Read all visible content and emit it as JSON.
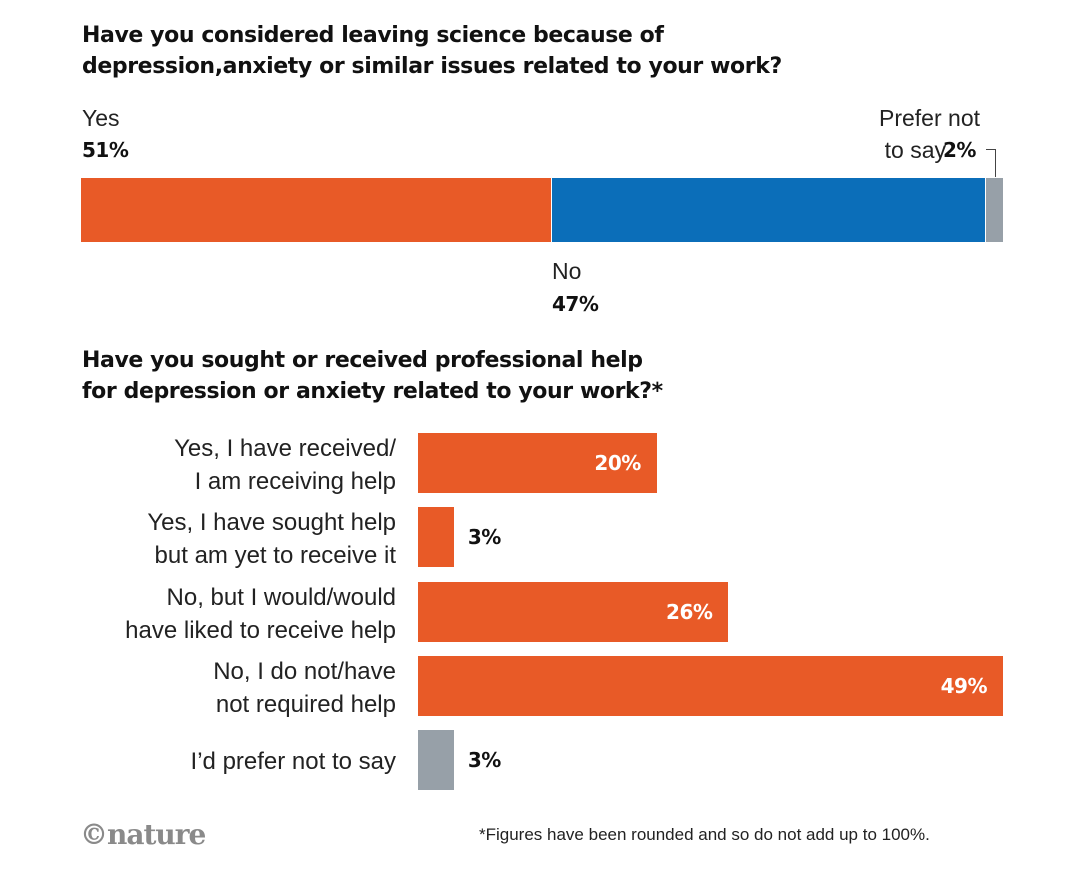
{
  "colors": {
    "orange": "#e85a27",
    "blue": "#0b6eb9",
    "grey": "#97a0a8"
  },
  "chart_data": [
    {
      "type": "bar",
      "orientation": "stacked-horizontal",
      "title": [
        "Have you considered leaving science because of",
        "depression,anxiety or similar issues related to your work?"
      ],
      "segments": [
        {
          "name": "Yes",
          "value": 51,
          "label": "51%",
          "color": "#e85a27"
        },
        {
          "name": "No",
          "value": 47,
          "label": "47%",
          "color": "#0b6eb9"
        },
        {
          "name_lines": [
            "Prefer not",
            "to say"
          ],
          "value": 2,
          "label": "2%",
          "color": "#97a0a8"
        }
      ]
    },
    {
      "type": "bar",
      "orientation": "horizontal",
      "title": [
        "Have you sought or received professional help",
        "for depression or anxiety related to your work?*"
      ],
      "xlim": [
        0,
        49
      ],
      "categories": [
        {
          "lines": [
            "Yes, I have received/",
            "I am receiving help"
          ],
          "value": 20,
          "label": "20%",
          "color": "#e85a27",
          "inside": true
        },
        {
          "lines": [
            "Yes, I have sought help",
            "but am yet to receive it"
          ],
          "value": 3,
          "label": "3%",
          "color": "#e85a27",
          "inside": false
        },
        {
          "lines": [
            "No, but I would/would",
            "have liked to receive help"
          ],
          "value": 26,
          "label": "26%",
          "color": "#e85a27",
          "inside": true
        },
        {
          "lines": [
            "No, I do not/have",
            "not required help"
          ],
          "value": 49,
          "label": "49%",
          "color": "#e85a27",
          "inside": true
        },
        {
          "lines": [
            "I’d prefer not to say"
          ],
          "value": 3,
          "label": "3%",
          "color": "#97a0a8",
          "inside": false
        }
      ]
    }
  ],
  "footer": {
    "logo": "©nature",
    "footnote": "*Figures have been rounded and so do not add up to 100%."
  }
}
